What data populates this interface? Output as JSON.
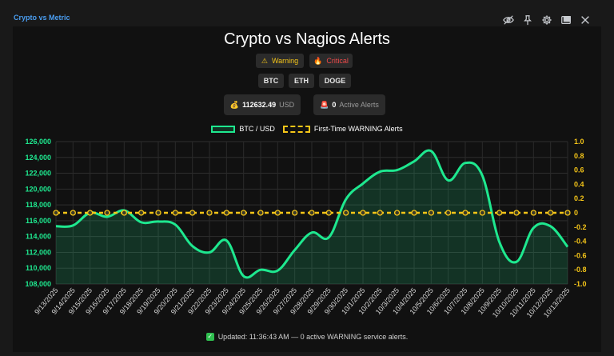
{
  "widget": {
    "title": "Crypto vs Metric",
    "toolbar": [
      {
        "icon": "hide-icon"
      },
      {
        "icon": "pin-icon"
      },
      {
        "icon": "gear-icon"
      },
      {
        "icon": "maximize-icon"
      },
      {
        "icon": "close-icon"
      }
    ]
  },
  "header": {
    "title": "Crypto vs Nagios Alerts",
    "filters": {
      "warning_label": "Warning",
      "critical_label": "Critical"
    },
    "coins": [
      "BTC",
      "ETH",
      "DOGE"
    ],
    "price_value": "112632.49",
    "price_unit": "USD",
    "alerts_value": "0",
    "alerts_label": "Active Alerts"
  },
  "colors": {
    "btc_line": "#1ee88f",
    "warning_line": "#f5c518",
    "left_axis": "#1ee88f",
    "right_axis": "#f5c518"
  },
  "chart_data": {
    "type": "line",
    "title": "",
    "legend": [
      "BTC / USD",
      "First-Time WARNING Alerts"
    ],
    "legend_position": "top-center",
    "grid": true,
    "categories": [
      "9/13/2025",
      "9/14/2025",
      "9/15/2025",
      "9/16/2025",
      "9/17/2025",
      "9/18/2025",
      "9/19/2025",
      "9/20/2025",
      "9/21/2025",
      "9/22/2025",
      "9/23/2025",
      "9/24/2025",
      "9/25/2025",
      "9/26/2025",
      "9/27/2025",
      "9/28/2025",
      "9/29/2025",
      "9/30/2025",
      "10/1/2025",
      "10/2/2025",
      "10/3/2025",
      "10/4/2025",
      "10/5/2025",
      "10/6/2025",
      "10/7/2025",
      "10/8/2025",
      "10/9/2025",
      "10/10/2025",
      "10/11/2025",
      "10/12/2025",
      "10/13/2025"
    ],
    "series": [
      {
        "name": "BTC / USD",
        "axis": "left",
        "values": [
          115300,
          115400,
          117000,
          116500,
          117300,
          115800,
          115900,
          115500,
          112800,
          112000,
          113500,
          109000,
          109800,
          109700,
          112300,
          114500,
          113900,
          118700,
          120700,
          122200,
          122400,
          123500,
          124800,
          121100,
          123300,
          121700,
          113300,
          110800,
          115100,
          115300,
          112700
        ]
      },
      {
        "name": "First-Time WARNING Alerts",
        "axis": "right",
        "values": [
          0,
          0,
          0,
          0,
          0,
          0,
          0,
          0,
          0,
          0,
          0,
          0,
          0,
          0,
          0,
          0,
          0,
          0,
          0,
          0,
          0,
          0,
          0,
          0,
          0,
          0,
          0,
          0,
          0,
          0,
          0
        ]
      }
    ],
    "y_left": {
      "min": 108000,
      "max": 126000,
      "ticks": [
        "108,000",
        "110,000",
        "112,000",
        "114,000",
        "116,000",
        "118,000",
        "120,000",
        "122,000",
        "124,000",
        "126,000"
      ]
    },
    "y_right": {
      "min": -1.0,
      "max": 1.0,
      "ticks": [
        "-1.0",
        "-0.8",
        "-0.6",
        "-0.4",
        "-0.2",
        "0",
        "0.2",
        "0.4",
        "0.6",
        "0.8",
        "1.0"
      ]
    }
  },
  "footer": {
    "text": "Updated: 11:36:43 AM — 0 active WARNING service alerts."
  }
}
